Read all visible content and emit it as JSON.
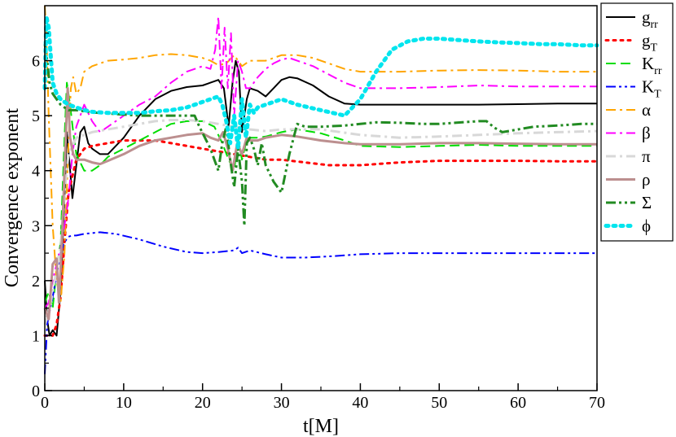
{
  "chart_data": {
    "type": "line",
    "title": "",
    "xlabel": "t[M]",
    "ylabel": "Convergence exponent",
    "xlim": [
      0,
      70
    ],
    "ylim": [
      0,
      7
    ],
    "xticks": [
      0,
      10,
      20,
      30,
      40,
      50,
      60,
      70
    ],
    "yticks": [
      0,
      1,
      2,
      3,
      4,
      5,
      6
    ],
    "xtick_labels": [
      "0",
      "10",
      "20",
      "30",
      "40",
      "50",
      "60",
      "70"
    ],
    "ytick_labels": [
      "0",
      "1",
      "2",
      "3",
      "4",
      "5",
      "6"
    ],
    "legend_position": "right",
    "series": [
      {
        "name": "g_rr",
        "label_main": "g",
        "label_sub": "rr",
        "color": "#000000",
        "dash": "solid",
        "x": [
          0,
          0.3,
          0.6,
          1,
          1.5,
          2,
          2.5,
          2.8,
          3.1,
          3.5,
          4,
          4.5,
          5,
          5.5,
          6,
          7,
          8,
          9,
          10,
          12,
          14,
          16,
          18,
          20,
          21,
          22,
          22.7,
          23.3,
          23.8,
          24.2,
          24.6,
          25,
          25.6,
          26,
          27,
          28,
          29,
          30,
          31,
          32,
          34,
          36,
          38,
          40,
          45,
          50,
          55,
          60,
          65,
          70
        ],
        "y": [
          2.0,
          1.3,
          1.0,
          1.1,
          1.0,
          1.8,
          3.5,
          4.7,
          4.2,
          3.5,
          4.1,
          4.7,
          4.8,
          4.5,
          4.4,
          4.3,
          4.3,
          4.45,
          4.6,
          5.0,
          5.3,
          5.45,
          5.52,
          5.55,
          5.6,
          5.65,
          5.5,
          4.8,
          5.6,
          6.0,
          5.8,
          4.7,
          5.3,
          5.5,
          5.45,
          5.35,
          5.5,
          5.65,
          5.7,
          5.68,
          5.55,
          5.35,
          5.22,
          5.2,
          5.2,
          5.2,
          5.2,
          5.21,
          5.22,
          5.22
        ]
      },
      {
        "name": "g_T",
        "label_main": "g",
        "label_sub": "T",
        "color": "#ff0000",
        "dash": "dot",
        "x": [
          0,
          0.5,
          1,
          1.5,
          2,
          2.5,
          3,
          3.5,
          4,
          5,
          6,
          8,
          10,
          12,
          14,
          16,
          18,
          20,
          22,
          24,
          26,
          28,
          30,
          33,
          36,
          40,
          45,
          50,
          55,
          60,
          65,
          70
        ],
        "y": [
          1.0,
          1.0,
          1.0,
          1.2,
          1.7,
          2.7,
          3.6,
          3.9,
          4.2,
          4.4,
          4.45,
          4.5,
          4.55,
          4.55,
          4.55,
          4.5,
          4.45,
          4.4,
          4.35,
          4.3,
          4.25,
          4.2,
          4.2,
          4.15,
          4.1,
          4.1,
          4.15,
          4.18,
          4.18,
          4.18,
          4.17,
          4.17
        ]
      },
      {
        "name": "K_rr",
        "label_main": "K",
        "label_sub": "rr",
        "color": "#00dd00",
        "dash": "dash",
        "x": [
          0,
          0.5,
          1,
          1.5,
          2,
          2.5,
          2.8,
          3.2,
          3.6,
          4,
          5,
          6,
          7,
          8,
          10,
          12,
          14,
          16,
          18,
          20,
          21.5,
          22.5,
          23.3,
          24,
          24.5,
          25,
          25.5,
          26,
          27,
          28,
          30,
          32,
          35,
          38,
          40,
          45,
          50,
          55,
          60,
          65,
          70
        ],
        "y": [
          1.6,
          1.8,
          1.5,
          2.2,
          2.7,
          4.6,
          5.6,
          5.2,
          4.7,
          4.3,
          4.0,
          4.0,
          4.1,
          4.25,
          4.4,
          4.55,
          4.7,
          4.85,
          4.9,
          4.9,
          4.8,
          4.5,
          4.2,
          4.0,
          4.6,
          4.2,
          4.5,
          4.6,
          4.6,
          4.62,
          4.7,
          4.75,
          4.68,
          4.55,
          4.45,
          4.43,
          4.45,
          4.47,
          4.45,
          4.45,
          4.45
        ]
      },
      {
        "name": "K_T",
        "label_main": "K",
        "label_sub": "T",
        "color": "#0000ff",
        "dash": "dashdotdot",
        "x": [
          0,
          0.3,
          0.7,
          1,
          1.5,
          2,
          2.5,
          3,
          3.5,
          4,
          5,
          7,
          9,
          12,
          15,
          18,
          20,
          22,
          24,
          24.5,
          25,
          26,
          28,
          30,
          33,
          36,
          40,
          45,
          50,
          55,
          60,
          65,
          70
        ],
        "y": [
          0.3,
          1.2,
          1.5,
          1.7,
          2.1,
          2.5,
          2.7,
          2.8,
          2.82,
          2.82,
          2.85,
          2.88,
          2.85,
          2.75,
          2.62,
          2.52,
          2.5,
          2.52,
          2.55,
          2.6,
          2.5,
          2.55,
          2.48,
          2.42,
          2.42,
          2.44,
          2.48,
          2.5,
          2.5,
          2.5,
          2.5,
          2.5,
          2.5
        ]
      },
      {
        "name": "alpha",
        "label_main": "α",
        "label_sub": "",
        "color": "#ffa500",
        "dash": "dashdot",
        "x": [
          0,
          0.2,
          0.5,
          1,
          1.5,
          2,
          2.5,
          3,
          3.3,
          3.6,
          4,
          4.5,
          5,
          6,
          7,
          8,
          10,
          12,
          14,
          16,
          18,
          20,
          21,
          22,
          23,
          24,
          25,
          26,
          28,
          30,
          32,
          34,
          36,
          38,
          40,
          45,
          50,
          55,
          60,
          65,
          70
        ],
        "y": [
          7.0,
          6.5,
          5.0,
          3.0,
          2.0,
          1.6,
          2.5,
          4.5,
          5.5,
          5.7,
          5.4,
          5.5,
          5.8,
          5.9,
          5.95,
          6.0,
          6.02,
          6.05,
          6.1,
          6.12,
          6.1,
          6.05,
          6.0,
          5.92,
          5.95,
          6.1,
          5.9,
          6.0,
          6.0,
          6.1,
          6.1,
          6.05,
          5.95,
          5.85,
          5.8,
          5.8,
          5.82,
          5.83,
          5.82,
          5.8,
          5.8
        ]
      },
      {
        "name": "beta",
        "label_main": "β",
        "label_sub": "",
        "color": "#ff00ff",
        "dash": "dashdot",
        "x": [
          0,
          0.5,
          1,
          1.5,
          2,
          2.5,
          3,
          3.5,
          4,
          4.5,
          5,
          6,
          7,
          8,
          10,
          12,
          14,
          16,
          18,
          20,
          21,
          21.6,
          22,
          22.4,
          22.8,
          23.2,
          23.6,
          24,
          24.5,
          25,
          25.5,
          26,
          27,
          28,
          29,
          30,
          31,
          32,
          34,
          36,
          38,
          40,
          45,
          50,
          55,
          60,
          65,
          70
        ],
        "y": [
          1.5,
          1.6,
          2.0,
          2.3,
          2.6,
          3.0,
          3.5,
          4.3,
          4.8,
          5.0,
          5.2,
          4.9,
          4.7,
          4.8,
          5.0,
          5.2,
          5.35,
          5.6,
          5.8,
          5.9,
          5.85,
          6.2,
          6.8,
          5.5,
          6.6,
          5.5,
          6.5,
          5.0,
          6.0,
          5.8,
          5.5,
          5.5,
          5.7,
          5.85,
          5.95,
          6.02,
          6.05,
          6.0,
          5.9,
          5.75,
          5.6,
          5.5,
          5.5,
          5.52,
          5.55,
          5.53,
          5.53,
          5.53
        ]
      },
      {
        "name": "pi",
        "label_main": "π",
        "label_sub": "",
        "color": "#d8d8d8",
        "dash": "dashdot",
        "x": [
          0,
          0.5,
          1,
          1.5,
          2,
          2.5,
          3,
          4,
          5,
          6,
          8,
          10,
          12,
          14,
          16,
          18,
          20,
          22,
          24,
          26,
          28,
          30,
          35,
          40,
          45,
          50,
          55,
          60,
          65,
          70
        ],
        "y": [
          1.2,
          1.4,
          1.8,
          2.2,
          2.6,
          3.6,
          4.3,
          4.6,
          4.65,
          4.7,
          4.75,
          4.8,
          4.85,
          4.9,
          4.92,
          4.92,
          4.9,
          4.85,
          4.8,
          4.75,
          4.72,
          4.75,
          4.75,
          4.65,
          4.6,
          4.62,
          4.65,
          4.68,
          4.7,
          4.72
        ]
      },
      {
        "name": "rho",
        "label_main": "ρ",
        "label_sub": "",
        "color": "#bc8f8f",
        "dash": "solid",
        "x": [
          0,
          0.5,
          1,
          1.5,
          1.8,
          2.2,
          2.6,
          2.9,
          3.2,
          3.6,
          4,
          5,
          6,
          7,
          8,
          10,
          12,
          14,
          16,
          18,
          20,
          21,
          22,
          22.6,
          23.2,
          23.8,
          24.4,
          25,
          25.6,
          26,
          27,
          28,
          30,
          32,
          35,
          38,
          40,
          45,
          50,
          55,
          60,
          65,
          70
        ],
        "y": [
          1.5,
          1.3,
          2.3,
          2.4,
          1.6,
          2.8,
          4.4,
          5.5,
          4.6,
          4.3,
          4.2,
          4.2,
          4.15,
          4.12,
          4.18,
          4.3,
          4.45,
          4.55,
          4.6,
          4.65,
          4.68,
          4.6,
          4.55,
          4.7,
          4.4,
          4.0,
          4.5,
          4.3,
          4.6,
          4.55,
          4.55,
          4.6,
          4.65,
          4.62,
          4.55,
          4.5,
          4.48,
          4.48,
          4.5,
          4.5,
          4.49,
          4.48,
          4.48
        ]
      },
      {
        "name": "Sigma",
        "label_main": "Σ",
        "label_sub": "",
        "color": "#228b22",
        "dash": "dashdotdot",
        "x": [
          0,
          0.3,
          0.6,
          1,
          1.5,
          2,
          2.5,
          3,
          4,
          5,
          6,
          8,
          10,
          12,
          14,
          16,
          18,
          19,
          19.6,
          20.3,
          21,
          21.5,
          22,
          22.5,
          23,
          23.5,
          24,
          24.5,
          25,
          25.3,
          25.6,
          26,
          26.5,
          27,
          27.5,
          28,
          29,
          30,
          31,
          32,
          33,
          35,
          38,
          40,
          42,
          45,
          48,
          50,
          52,
          55,
          56,
          57,
          58,
          60,
          62,
          65,
          68,
          70
        ],
        "y": [
          6.3,
          6.0,
          5.6,
          5.4,
          5.3,
          5.2,
          5.15,
          5.1,
          5.1,
          5.08,
          5.06,
          5.04,
          5.02,
          5.0,
          5.0,
          5.0,
          5.0,
          5.0,
          4.8,
          4.6,
          4.4,
          4.2,
          4.0,
          4.5,
          4.8,
          4.2,
          3.7,
          4.4,
          3.8,
          3.0,
          4.5,
          4.6,
          4.4,
          4.1,
          4.5,
          4.1,
          3.8,
          3.6,
          4.3,
          4.85,
          4.8,
          4.8,
          4.82,
          4.85,
          4.88,
          4.87,
          4.85,
          4.85,
          4.87,
          4.9,
          4.9,
          4.78,
          4.7,
          4.75,
          4.8,
          4.82,
          4.85,
          4.85
        ]
      },
      {
        "name": "phi",
        "label_main": "ϕ",
        "label_sub": "",
        "color": "#00e5ee",
        "dash": "dot",
        "x": [
          0,
          0.2,
          0.5,
          1,
          1.5,
          2,
          2.5,
          3,
          4,
          5,
          6,
          8,
          10,
          12,
          14,
          16,
          18,
          20,
          21,
          22,
          22.5,
          23,
          23.5,
          24,
          24.5,
          25,
          25.5,
          26,
          26.5,
          27,
          28,
          29,
          30,
          32,
          35,
          38,
          40,
          42,
          44,
          46,
          48,
          50,
          52,
          55,
          58,
          60,
          63,
          65,
          68,
          70
        ],
        "y": [
          5.5,
          6.8,
          6.6,
          5.6,
          5.4,
          5.3,
          5.25,
          5.2,
          5.15,
          5.1,
          5.07,
          5.05,
          5.05,
          5.05,
          5.08,
          5.1,
          5.15,
          5.25,
          5.3,
          5.35,
          5.2,
          4.9,
          4.5,
          5.0,
          4.4,
          5.3,
          4.6,
          5.2,
          5.05,
          5.15,
          5.2,
          5.25,
          5.3,
          5.2,
          5.1,
          5.0,
          5.3,
          5.8,
          6.2,
          6.35,
          6.4,
          6.4,
          6.38,
          6.35,
          6.33,
          6.32,
          6.3,
          6.3,
          6.28,
          6.28
        ]
      }
    ]
  }
}
